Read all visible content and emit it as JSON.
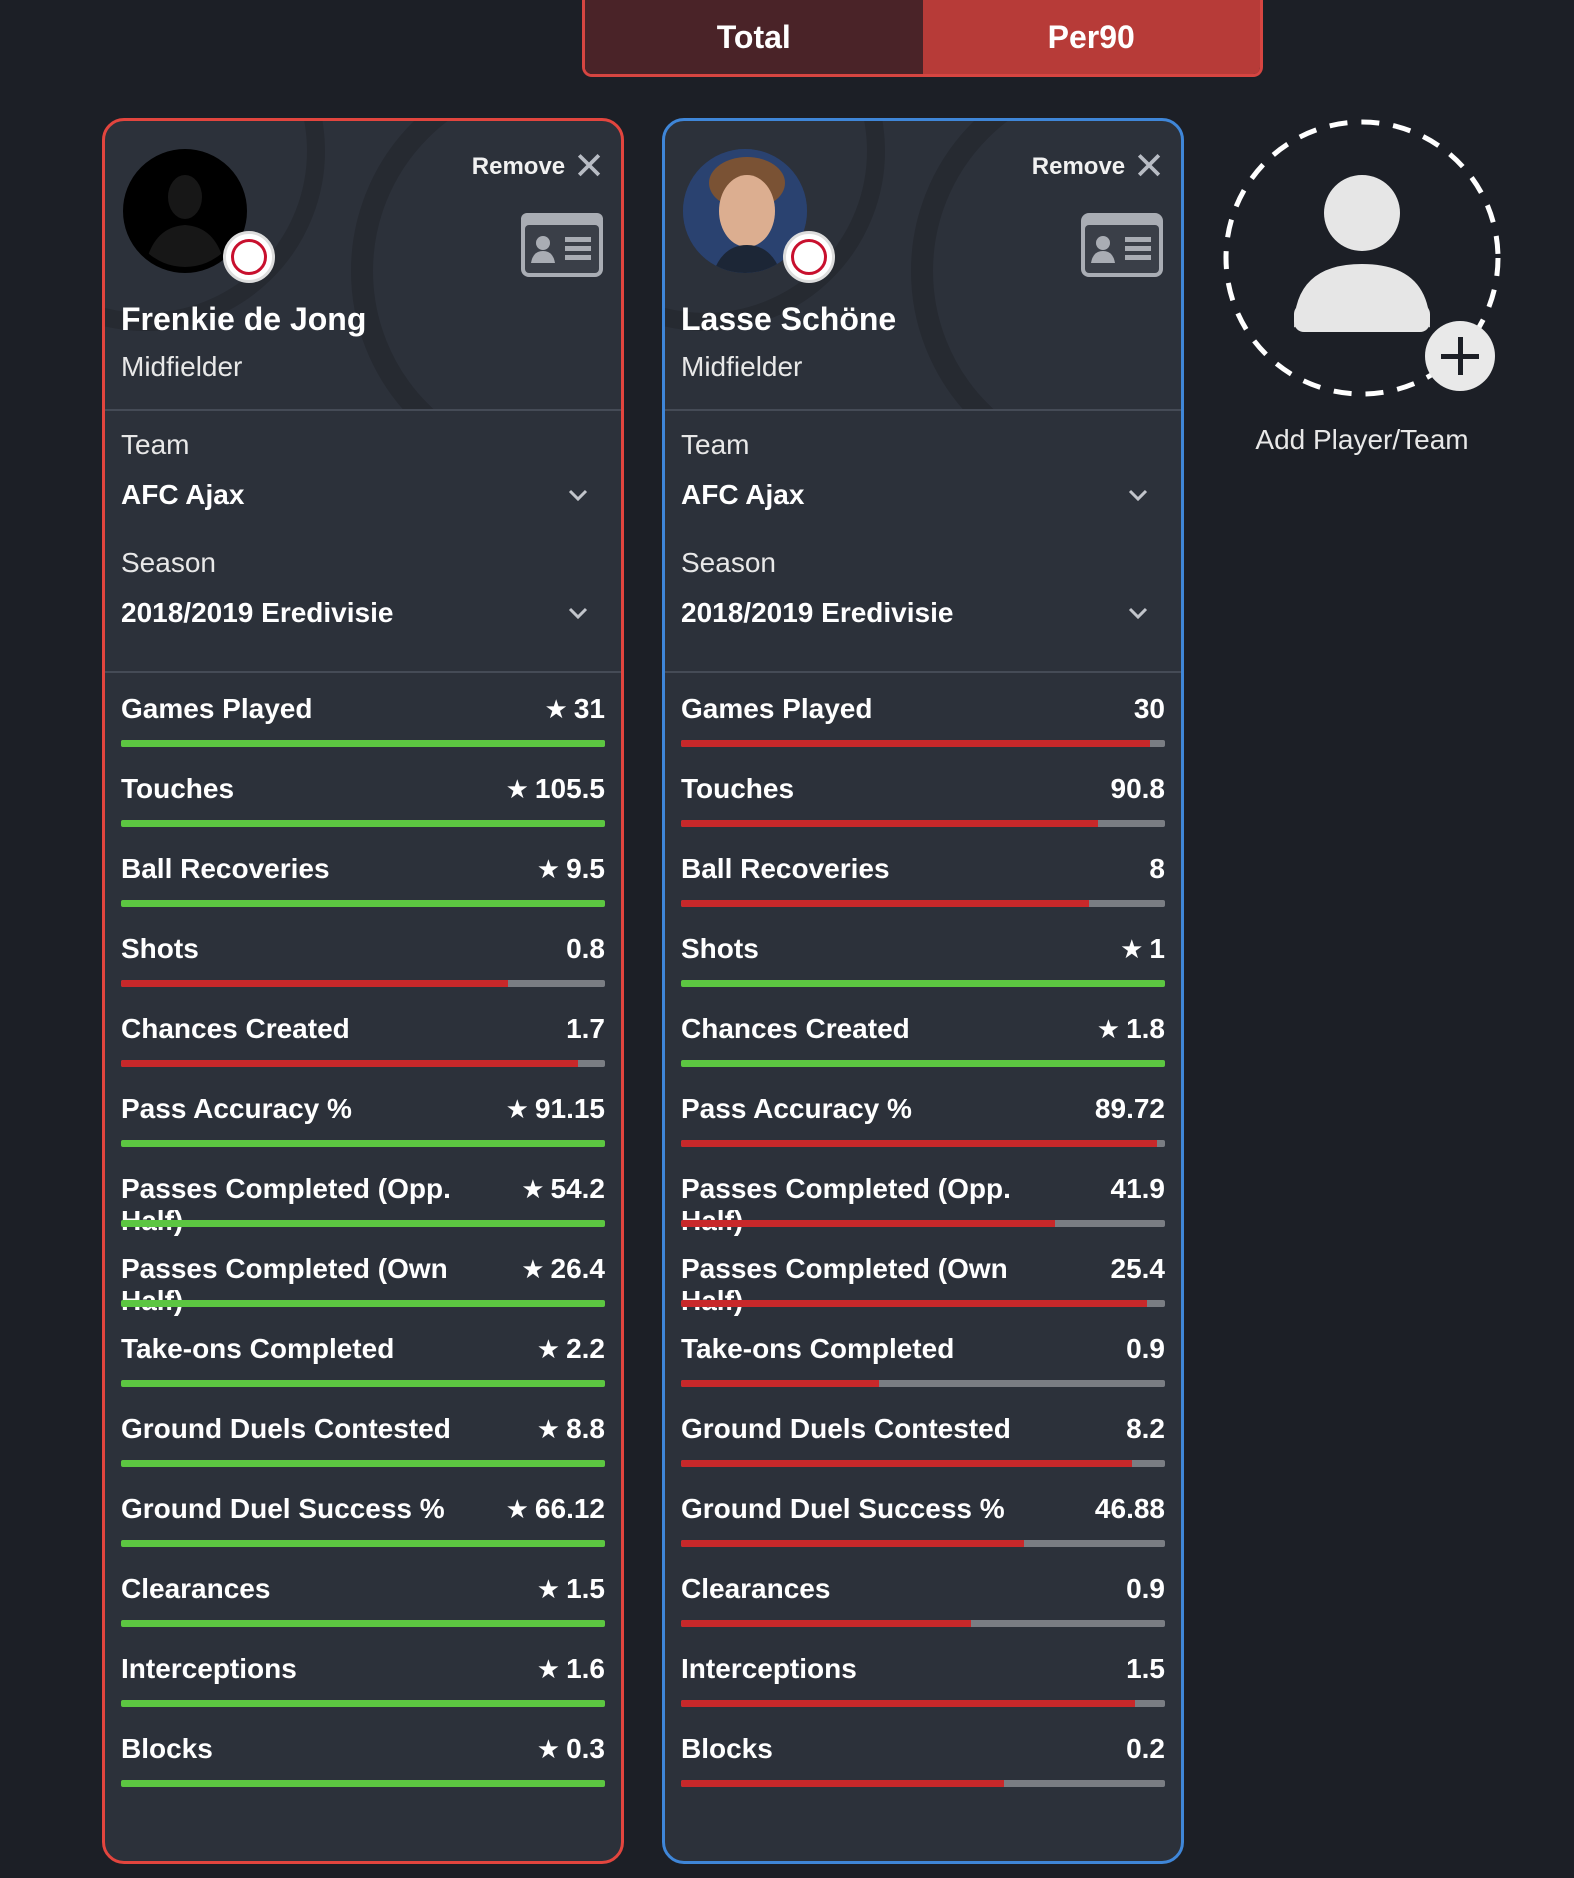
{
  "toggle": {
    "total_label": "Total",
    "per90_label": "Per90",
    "active": "Per90"
  },
  "add_player": {
    "label": "Add Player/Team"
  },
  "players": [
    {
      "name": "Frenkie de Jong",
      "position": "Midfielder",
      "remove_label": "Remove",
      "team_label": "Team",
      "team_value": "AFC Ajax",
      "season_label": "Season",
      "season_value": "2018/2019 Eredivisie",
      "accent_color": "#e2453e",
      "stats": [
        {
          "label": "Games Played",
          "value": "31",
          "star": true,
          "level": 0.999,
          "color": "green"
        },
        {
          "label": "Touches",
          "value": "105.5",
          "star": true,
          "level": 1.0,
          "color": "green"
        },
        {
          "label": "Ball Recoveries",
          "value": "9.5",
          "star": true,
          "level": 1.0,
          "color": "green"
        },
        {
          "label": "Shots",
          "value": "0.8",
          "star": false,
          "level": 0.8,
          "color": "red"
        },
        {
          "label": "Chances Created",
          "value": "1.7",
          "star": false,
          "level": 0.944,
          "color": "red"
        },
        {
          "label": "Pass Accuracy %",
          "value": "91.15",
          "star": true,
          "level": 1.0,
          "color": "green"
        },
        {
          "label": "Passes Completed (Opp. Half)",
          "value": "54.2",
          "star": true,
          "level": 1.0,
          "color": "green"
        },
        {
          "label": "Passes Completed (Own Half)",
          "value": "26.4",
          "star": true,
          "level": 1.0,
          "color": "green"
        },
        {
          "label": "Take-ons Completed",
          "value": "2.2",
          "star": true,
          "level": 1.0,
          "color": "green"
        },
        {
          "label": "Ground Duels Contested",
          "value": "8.8",
          "star": true,
          "level": 1.0,
          "color": "green"
        },
        {
          "label": "Ground Duel Success %",
          "value": "66.12",
          "star": true,
          "level": 1.0,
          "color": "green"
        },
        {
          "label": "Clearances",
          "value": "1.5",
          "star": true,
          "level": 1.0,
          "color": "green"
        },
        {
          "label": "Interceptions",
          "value": "1.6",
          "star": true,
          "level": 1.0,
          "color": "green"
        },
        {
          "label": "Blocks",
          "value": "0.3",
          "star": true,
          "level": 1.0,
          "color": "green"
        }
      ]
    },
    {
      "name": "Lasse Schöne",
      "position": "Midfielder",
      "remove_label": "Remove",
      "team_label": "Team",
      "team_value": "AFC Ajax",
      "season_label": "Season",
      "season_value": "2018/2019 Eredivisie",
      "accent_color": "#3f86d8",
      "stats": [
        {
          "label": "Games Played",
          "value": "30",
          "star": false,
          "level": 0.968,
          "color": "red"
        },
        {
          "label": "Touches",
          "value": "90.8",
          "star": false,
          "level": 0.861,
          "color": "red"
        },
        {
          "label": "Ball Recoveries",
          "value": "8",
          "star": false,
          "level": 0.842,
          "color": "red"
        },
        {
          "label": "Shots",
          "value": "1",
          "star": true,
          "level": 1.0,
          "color": "green"
        },
        {
          "label": "Chances Created",
          "value": "1.8",
          "star": true,
          "level": 1.0,
          "color": "green"
        },
        {
          "label": "Pass Accuracy %",
          "value": "89.72",
          "star": false,
          "level": 0.984,
          "color": "red"
        },
        {
          "label": "Passes Completed (Opp. Half)",
          "value": "41.9",
          "star": false,
          "level": 0.773,
          "color": "red"
        },
        {
          "label": "Passes Completed (Own Half)",
          "value": "25.4",
          "star": false,
          "level": 0.962,
          "color": "red"
        },
        {
          "label": "Take-ons Completed",
          "value": "0.9",
          "star": false,
          "level": 0.409,
          "color": "red"
        },
        {
          "label": "Ground Duels Contested",
          "value": "8.2",
          "star": false,
          "level": 0.932,
          "color": "red"
        },
        {
          "label": "Ground Duel Success %",
          "value": "46.88",
          "star": false,
          "level": 0.709,
          "color": "red"
        },
        {
          "label": "Clearances",
          "value": "0.9",
          "star": false,
          "level": 0.6,
          "color": "red"
        },
        {
          "label": "Interceptions",
          "value": "1.5",
          "star": false,
          "level": 0.938,
          "color": "red"
        },
        {
          "label": "Blocks",
          "value": "0.2",
          "star": false,
          "level": 0.667,
          "color": "red"
        }
      ]
    }
  ]
}
